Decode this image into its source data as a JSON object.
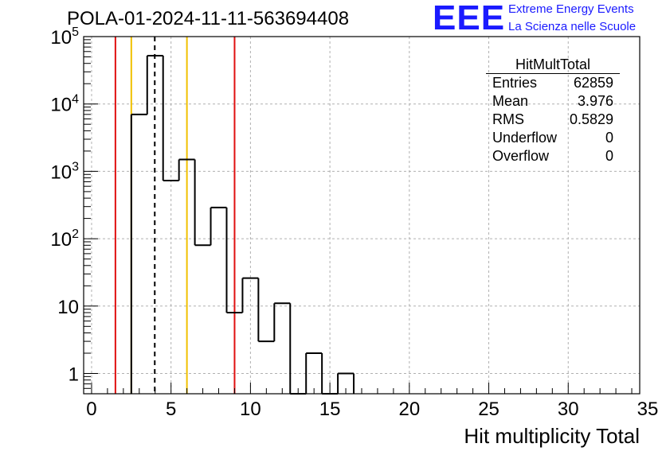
{
  "title": "POLA-01-2024-11-11-563694408",
  "logo": {
    "mark": "EEE",
    "line1": "Extreme Energy Events",
    "line2": "La Scienza nelle Scuole"
  },
  "stats": {
    "name": "HitMultTotal",
    "rows": [
      {
        "label": "Entries",
        "value": "62859"
      },
      {
        "label": "Mean",
        "value": "3.976"
      },
      {
        "label": "RMS",
        "value": "0.5829"
      },
      {
        "label": "Underflow",
        "value": "0"
      },
      {
        "label": "Overflow",
        "value": "0"
      }
    ]
  },
  "chart_data": {
    "type": "bar",
    "title": "POLA-01-2024-11-11-563694408",
    "xlabel": "Hit multiplicity Total",
    "ylabel": "",
    "xlim": [
      -0.5,
      34.5
    ],
    "ylim": [
      0.5,
      100000
    ],
    "yscale": "log",
    "grid": true,
    "xticks": [
      0,
      5,
      10,
      15,
      20,
      25,
      30,
      35
    ],
    "yticks": [
      {
        "value": 1,
        "label": "1"
      },
      {
        "value": 10,
        "label": "10"
      },
      {
        "value": 100,
        "label": "10^2"
      },
      {
        "value": 1000,
        "label": "10^3"
      },
      {
        "value": 10000,
        "label": "10^4"
      },
      {
        "value": 100000,
        "label": "10^5"
      }
    ],
    "bin_width": 1,
    "bins": [
      {
        "low": 2.5,
        "high": 3.5,
        "count": 7000
      },
      {
        "low": 3.5,
        "high": 4.5,
        "count": 52000
      },
      {
        "low": 4.5,
        "high": 5.5,
        "count": 730
      },
      {
        "low": 5.5,
        "high": 6.5,
        "count": 1500
      },
      {
        "low": 6.5,
        "high": 7.5,
        "count": 80
      },
      {
        "low": 7.5,
        "high": 8.5,
        "count": 290
      },
      {
        "low": 8.5,
        "high": 9.5,
        "count": 8
      },
      {
        "low": 9.5,
        "high": 10.5,
        "count": 26
      },
      {
        "low": 10.5,
        "high": 11.5,
        "count": 3
      },
      {
        "low": 11.5,
        "high": 12.5,
        "count": 11
      },
      {
        "low": 12.5,
        "high": 13.5,
        "count": 0
      },
      {
        "low": 13.5,
        "high": 14.5,
        "count": 2
      },
      {
        "low": 14.5,
        "high": 15.5,
        "count": 0
      },
      {
        "low": 15.5,
        "high": 16.5,
        "count": 1
      }
    ],
    "markers": [
      {
        "x": 1.5,
        "color": "#e01010",
        "style": "solid"
      },
      {
        "x": 2.5,
        "color": "#f0c000",
        "style": "solid"
      },
      {
        "x": 3.976,
        "color": "#000000",
        "style": "dashed"
      },
      {
        "x": 6.0,
        "color": "#f0c000",
        "style": "solid"
      },
      {
        "x": 9.0,
        "color": "#e01010",
        "style": "solid"
      }
    ]
  }
}
